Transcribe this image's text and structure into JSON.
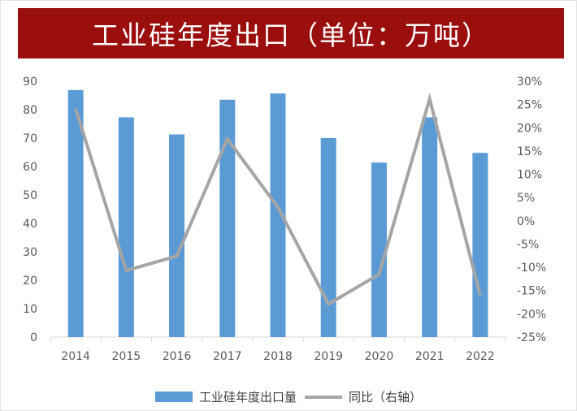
{
  "chart_data": {
    "type": "bar+line",
    "title": "工业硅年度出口（单位：万吨）",
    "categories": [
      "2014",
      "2015",
      "2016",
      "2017",
      "2018",
      "2019",
      "2020",
      "2021",
      "2022"
    ],
    "series": [
      {
        "name": "工业硅年度出口量",
        "type": "bar",
        "axis": "left",
        "color": "#5b9bd5",
        "values": [
          86.9,
          77.3,
          71.3,
          83.5,
          85.7,
          70.0,
          61.4,
          77.3,
          64.8
        ]
      },
      {
        "name": "同比（右轴）",
        "type": "line",
        "axis": "right",
        "color": "#a5a5a5",
        "values": [
          24.1,
          -10.7,
          -7.6,
          17.6,
          2.9,
          -17.9,
          -11.5,
          26.2,
          -16.0
        ]
      }
    ],
    "left_axis": {
      "ylim": [
        0,
        90
      ],
      "ticks": [
        "0",
        "10",
        "20",
        "30",
        "40",
        "50",
        "60",
        "70",
        "80",
        "90"
      ]
    },
    "right_axis": {
      "ylim": [
        -25,
        30
      ],
      "unit": "%",
      "ticks": [
        "-25%",
        "-20%",
        "-15%",
        "-10%",
        "-5%",
        "0%",
        "5%",
        "10%",
        "15%",
        "20%",
        "25%",
        "30%"
      ]
    },
    "grid": false,
    "legend": "bottom",
    "banner_color": "#9a0e0e"
  }
}
